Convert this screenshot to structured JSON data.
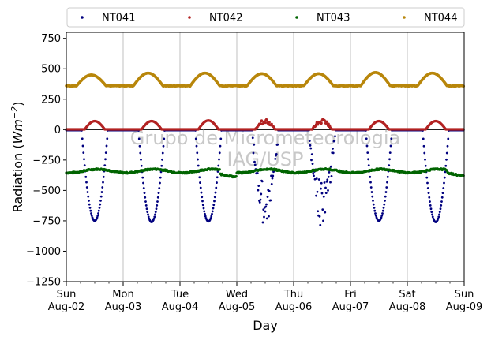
{
  "chart_data": {
    "type": "scatter",
    "xlabel": "Day",
    "ylabel": "Radiation (Wm⁻²)",
    "ylabel_parts": {
      "prefix": "Radiation (",
      "unit": "Wm",
      "sup": "−2",
      "suffix": ")"
    },
    "ylim": [
      -1250,
      800
    ],
    "yticks": [
      -1250,
      -1000,
      -750,
      -500,
      -250,
      0,
      250,
      500,
      750
    ],
    "ytick_labels": [
      "−1250",
      "−1000",
      "−750",
      "−500",
      "−250",
      "0",
      "250",
      "500",
      "750"
    ],
    "xlim": [
      "2020-08-02",
      "2020-08-09"
    ],
    "xticks": [
      {
        "day": "Sun",
        "date": "Aug-02"
      },
      {
        "day": "Mon",
        "date": "Aug-03"
      },
      {
        "day": "Tue",
        "date": "Aug-04"
      },
      {
        "day": "Wed",
        "date": "Aug-05"
      },
      {
        "day": "Thu",
        "date": "Aug-06"
      },
      {
        "day": "Fri",
        "date": "Aug-07"
      },
      {
        "day": "Sat",
        "date": "Aug-08"
      },
      {
        "day": "Sun",
        "date": "Aug-09"
      }
    ],
    "grid": "vertical",
    "legend_position": "top",
    "watermark": [
      "Grupo de Micrometeorologia",
      "IAG/USP"
    ],
    "series": [
      {
        "name": "NT041",
        "color": "#00007f",
        "description_daily_minimum": [
          -750,
          -760,
          -755,
          -810,
          -780,
          -750,
          -760
        ]
      },
      {
        "name": "NT042",
        "color": "#b22222",
        "daily_peak": [
          70,
          70,
          75,
          80,
          80,
          70,
          70
        ]
      },
      {
        "name": "NT043",
        "color": "#006400",
        "baseline": -340
      },
      {
        "name": "NT044",
        "color": "#b8860b",
        "night_level": 360,
        "daily_peak": [
          450,
          465,
          465,
          460,
          460,
          470,
          465
        ]
      }
    ]
  }
}
